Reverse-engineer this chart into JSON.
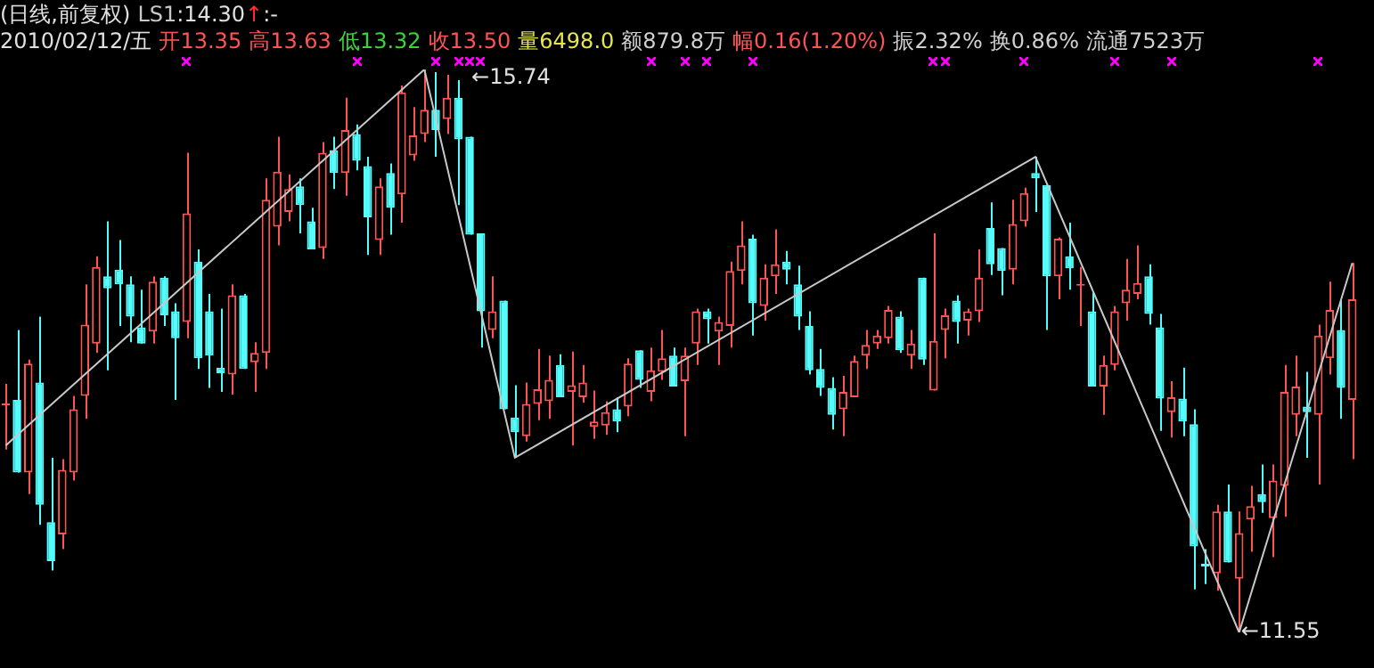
{
  "chart_data": {
    "type": "candlestick",
    "title": "(日线,前复权)",
    "categories": [
      null,
      null,
      null,
      null,
      null,
      null,
      null,
      null,
      null,
      null,
      null,
      null,
      null,
      null,
      null,
      null,
      null,
      null,
      null,
      null,
      null,
      null,
      null,
      null,
      null,
      null,
      null,
      null,
      null,
      null,
      null,
      null,
      null,
      null,
      null,
      null,
      null,
      null,
      null,
      null,
      null,
      null,
      null,
      null,
      null,
      null,
      null,
      null,
      null,
      null,
      null,
      null,
      null,
      null,
      null,
      null,
      null,
      null,
      null,
      null,
      null,
      null,
      null,
      null,
      null,
      null,
      null,
      null,
      null,
      null,
      null,
      null,
      null,
      null,
      null,
      null,
      null,
      null,
      null,
      null,
      null,
      null,
      null,
      null,
      null,
      null,
      null,
      null,
      null,
      null,
      null,
      null,
      null,
      null,
      null,
      null,
      null,
      null,
      null,
      null,
      null,
      null,
      null,
      null,
      null,
      null,
      null,
      null,
      null,
      null,
      null,
      null,
      null,
      null,
      null,
      null,
      null,
      null,
      null,
      null
    ],
    "series": [
      {
        "type": "candlestick",
        "ohlc": [
          [
            13.24,
            13.4,
            12.91,
            13.25
          ],
          [
            13.28,
            13.8,
            12.74,
            12.74
          ],
          [
            12.74,
            13.58,
            12.58,
            13.55
          ],
          [
            13.41,
            13.9,
            12.35,
            12.5
          ],
          [
            12.37,
            12.85,
            12.01,
            12.08
          ],
          [
            12.28,
            12.84,
            12.17,
            12.76
          ],
          [
            12.74,
            13.31,
            12.68,
            13.21
          ],
          [
            13.31,
            14.14,
            13.14,
            13.84
          ],
          [
            13.7,
            14.35,
            13.63,
            14.27
          ],
          [
            14.2,
            14.61,
            13.5,
            14.11
          ],
          [
            14.25,
            14.47,
            13.83,
            14.14
          ],
          [
            14.14,
            14.2,
            13.71,
            13.9
          ],
          [
            13.82,
            14.1,
            13.7,
            13.7
          ],
          [
            13.79,
            14.2,
            13.7,
            14.16
          ],
          [
            14.19,
            14.2,
            13.83,
            13.91
          ],
          [
            13.94,
            14.0,
            13.28,
            13.74
          ],
          [
            13.86,
            15.12,
            13.74,
            14.67
          ],
          [
            14.31,
            14.4,
            13.51,
            13.59
          ],
          [
            13.94,
            14.07,
            13.37,
            13.61
          ],
          [
            13.52,
            13.96,
            13.34,
            13.48
          ],
          [
            13.47,
            14.14,
            13.32,
            14.06
          ],
          [
            14.06,
            14.07,
            13.51,
            13.51
          ],
          [
            13.56,
            13.71,
            13.34,
            13.63
          ],
          [
            13.63,
            14.93,
            13.51,
            14.77
          ],
          [
            14.57,
            15.24,
            14.43,
            14.98
          ],
          [
            14.68,
            14.96,
            14.61,
            14.85
          ],
          [
            14.87,
            14.93,
            14.52,
            14.73
          ],
          [
            14.61,
            14.71,
            14.4,
            14.4
          ],
          [
            14.41,
            15.2,
            14.33,
            15.12
          ],
          [
            15.14,
            15.24,
            14.85,
            14.97
          ],
          [
            14.97,
            15.53,
            14.8,
            15.29
          ],
          [
            15.26,
            15.33,
            14.99,
            15.06
          ],
          [
            15.02,
            15.09,
            14.36,
            14.64
          ],
          [
            14.47,
            14.93,
            14.36,
            14.87
          ],
          [
            14.97,
            15.04,
            14.51,
            14.71
          ],
          [
            14.81,
            15.62,
            14.6,
            15.57
          ],
          [
            15.1,
            15.46,
            15.06,
            15.25
          ],
          [
            15.26,
            15.74,
            15.2,
            15.44
          ],
          [
            15.44,
            15.72,
            15.09,
            15.29
          ],
          [
            15.37,
            15.7,
            15.26,
            15.53
          ],
          [
            15.53,
            15.66,
            14.73,
            15.22
          ],
          [
            15.24,
            15.24,
            14.51,
            14.51
          ],
          [
            14.52,
            14.52,
            13.67,
            13.94
          ],
          [
            13.8,
            14.2,
            13.74,
            13.94
          ],
          [
            14.02,
            14.02,
            13.21,
            13.21
          ],
          [
            13.15,
            13.39,
            12.85,
            13.04
          ],
          [
            13.01,
            13.41,
            12.97,
            13.25
          ],
          [
            13.25,
            13.66,
            13.13,
            13.36
          ],
          [
            13.27,
            13.61,
            13.14,
            13.43
          ],
          [
            13.54,
            13.62,
            13.3,
            13.3
          ],
          [
            13.34,
            13.64,
            12.94,
            13.39
          ],
          [
            13.3,
            13.54,
            13.26,
            13.41
          ],
          [
            13.08,
            13.35,
            12.99,
            13.12
          ],
          [
            13.09,
            13.27,
            13.02,
            13.19
          ],
          [
            13.21,
            13.3,
            13.04,
            13.12
          ],
          [
            13.23,
            13.59,
            13.16,
            13.55
          ],
          [
            13.65,
            13.65,
            13.37,
            13.43
          ],
          [
            13.34,
            13.67,
            13.27,
            13.5
          ],
          [
            13.49,
            13.8,
            13.43,
            13.59
          ],
          [
            13.61,
            13.67,
            13.38,
            13.38
          ],
          [
            13.42,
            13.67,
            13.01,
            13.61
          ],
          [
            13.7,
            13.96,
            13.54,
            13.94
          ],
          [
            13.94,
            13.96,
            13.7,
            13.88
          ],
          [
            13.79,
            13.9,
            13.54,
            13.86
          ],
          [
            13.83,
            14.31,
            13.67,
            14.24
          ],
          [
            14.24,
            14.61,
            14.14,
            14.43
          ],
          [
            14.48,
            14.51,
            13.76,
            14.0
          ],
          [
            13.98,
            14.29,
            13.87,
            14.19
          ],
          [
            14.2,
            14.55,
            14.07,
            14.29
          ],
          [
            14.31,
            14.39,
            14.14,
            14.25
          ],
          [
            14.14,
            14.28,
            13.8,
            13.9
          ],
          [
            13.83,
            13.94,
            13.47,
            13.5
          ],
          [
            13.51,
            13.66,
            13.31,
            13.37
          ],
          [
            13.37,
            13.45,
            13.06,
            13.17
          ],
          [
            13.21,
            13.46,
            13.01,
            13.34
          ],
          [
            13.3,
            13.61,
            13.3,
            13.57
          ],
          [
            13.61,
            13.8,
            13.51,
            13.69
          ],
          [
            13.7,
            13.8,
            13.66,
            13.76
          ],
          [
            13.74,
            13.98,
            13.7,
            13.95
          ],
          [
            13.9,
            13.94,
            13.63,
            13.65
          ],
          [
            13.61,
            13.8,
            13.51,
            13.7
          ],
          [
            14.19,
            14.19,
            13.54,
            13.58
          ],
          [
            13.35,
            14.52,
            13.35,
            13.72
          ],
          [
            13.8,
            13.96,
            13.59,
            13.91
          ],
          [
            14.02,
            14.06,
            13.7,
            13.86
          ],
          [
            13.87,
            13.96,
            13.76,
            13.94
          ],
          [
            13.94,
            14.4,
            13.86,
            14.19
          ],
          [
            14.56,
            14.75,
            14.21,
            14.29
          ],
          [
            14.41,
            14.41,
            14.06,
            14.24
          ],
          [
            14.25,
            14.77,
            14.14,
            14.59
          ],
          [
            14.61,
            14.86,
            14.57,
            14.82
          ],
          [
            14.97,
            15.09,
            14.68,
            14.93
          ],
          [
            14.88,
            14.88,
            13.8,
            14.2
          ],
          [
            14.2,
            14.49,
            14.03,
            14.48
          ],
          [
            14.35,
            14.6,
            14.1,
            14.26
          ],
          [
            14.13,
            14.27,
            13.83,
            14.14
          ],
          [
            13.94,
            14.08,
            13.38,
            13.38
          ],
          [
            13.38,
            13.61,
            13.17,
            13.54
          ],
          [
            13.54,
            13.98,
            13.5,
            13.94
          ],
          [
            14.0,
            14.33,
            13.87,
            14.1
          ],
          [
            14.07,
            14.43,
            14.03,
            14.15
          ],
          [
            14.2,
            14.29,
            13.84,
            13.92
          ],
          [
            13.82,
            13.92,
            13.05,
            13.29
          ],
          [
            13.19,
            13.42,
            13.0,
            13.3
          ],
          [
            13.29,
            13.52,
            13.01,
            13.12
          ],
          [
            13.1,
            13.21,
            11.87,
            12.19
          ],
          [
            12.06,
            12.17,
            11.91,
            12.04
          ],
          [
            11.99,
            12.5,
            11.86,
            12.45
          ],
          [
            12.45,
            12.65,
            12.07,
            12.07
          ],
          [
            11.95,
            12.45,
            11.55,
            12.29
          ],
          [
            12.39,
            12.64,
            12.15,
            12.49
          ],
          [
            12.58,
            12.8,
            12.44,
            12.52
          ],
          [
            12.4,
            12.8,
            12.11,
            12.68
          ],
          [
            12.64,
            13.54,
            12.41,
            13.34
          ],
          [
            13.17,
            13.61,
            13.01,
            13.38
          ],
          [
            13.23,
            13.49,
            12.85,
            13.19
          ],
          [
            13.17,
            13.84,
            12.65,
            13.76
          ],
          [
            13.59,
            14.16,
            13.47,
            13.95
          ],
          [
            13.8,
            14.03,
            13.14,
            13.37
          ],
          [
            13.28,
            14.3,
            12.84,
            14.03
          ]
        ],
        "colors": [
          "#ff5454",
          "#54fcfc",
          "#ff5454",
          "#54fcfc",
          "#54fcfc",
          "#ff5454",
          "#ff5454",
          "#ff5454",
          "#ff5454",
          "#54fcfc",
          "#54fcfc",
          "#54fcfc",
          "#54fcfc",
          "#ff5454",
          "#54fcfc",
          "#54fcfc",
          "#ff5454",
          "#54fcfc",
          "#54fcfc",
          "#54fcfc",
          "#ff5454",
          "#54fcfc",
          "#ff5454",
          "#ff5454",
          "#ff5454",
          "#ff5454",
          "#54fcfc",
          "#54fcfc",
          "#ff5454",
          "#54fcfc",
          "#ff5454",
          "#54fcfc",
          "#54fcfc",
          "#ff5454",
          "#54fcfc",
          "#ff5454",
          "#ff5454",
          "#ff5454",
          "#54fcfc",
          "#ff5454",
          "#54fcfc",
          "#54fcfc",
          "#54fcfc",
          "#ff5454",
          "#54fcfc",
          "#54fcfc",
          "#ff5454",
          "#ff5454",
          "#ff5454",
          "#54fcfc",
          "#ff5454",
          "#ff5454",
          "#ff5454",
          "#ff5454",
          "#54fcfc",
          "#ff5454",
          "#54fcfc",
          "#ff5454",
          "#ff5454",
          "#54fcfc",
          "#ff5454",
          "#ff5454",
          "#54fcfc",
          "#ff5454",
          "#ff5454",
          "#ff5454",
          "#54fcfc",
          "#ff5454",
          "#ff5454",
          "#54fcfc",
          "#54fcfc",
          "#54fcfc",
          "#54fcfc",
          "#54fcfc",
          "#ff5454",
          "#ff5454",
          "#ff5454",
          "#ff5454",
          "#ff5454",
          "#54fcfc",
          "#ff5454",
          "#54fcfc",
          "#ff5454",
          "#ff5454",
          "#54fcfc",
          "#ff5454",
          "#ff5454",
          "#54fcfc",
          "#54fcfc",
          "#ff5454",
          "#ff5454",
          "#54fcfc",
          "#54fcfc",
          "#ff5454",
          "#54fcfc",
          "#ff5454",
          "#54fcfc",
          "#ff5454",
          "#ff5454",
          "#ff5454",
          "#ff5454",
          "#54fcfc",
          "#54fcfc",
          "#ff5454",
          "#54fcfc",
          "#54fcfc",
          "#54fcfc",
          "#ff5454",
          "#54fcfc",
          "#ff5454",
          "#ff5454",
          "#54fcfc",
          "#ff5454",
          "#ff5454",
          "#ff5454",
          "#54fcfc",
          "#ff5454",
          "#ff5454",
          "#54fcfc",
          "#ff5454"
        ]
      },
      {
        "type": "line",
        "name": "LS1",
        "color": "#c8c8c8",
        "values": [
          12.94,
          null,
          null,
          null,
          null,
          null,
          null,
          null,
          null,
          null,
          null,
          null,
          null,
          null,
          null,
          null,
          null,
          null,
          null,
          null,
          null,
          null,
          null,
          null,
          null,
          null,
          null,
          null,
          null,
          null,
          null,
          null,
          null,
          null,
          null,
          null,
          null,
          15.74,
          null,
          null,
          null,
          null,
          null,
          null,
          null,
          12.85,
          null,
          null,
          null,
          null,
          null,
          null,
          null,
          null,
          null,
          null,
          null,
          null,
          null,
          null,
          null,
          null,
          null,
          null,
          null,
          null,
          null,
          null,
          null,
          null,
          null,
          null,
          null,
          null,
          null,
          null,
          null,
          null,
          null,
          null,
          null,
          null,
          null,
          null,
          null,
          null,
          null,
          null,
          null,
          null,
          null,
          15.09,
          null,
          null,
          null,
          null,
          null,
          null,
          null,
          null,
          null,
          null,
          null,
          null,
          null,
          null,
          null,
          null,
          null,
          11.55,
          null,
          null,
          null,
          null,
          null,
          null,
          null,
          null,
          null,
          14.3
        ]
      }
    ],
    "annotations": [
      ":14.30",
      "↑",
      ":-",
      "2010/02/12/五",
      "开13.35",
      "高13.63",
      "低13.32",
      "收13.50",
      "量6498.0",
      "额879.8万",
      "幅0.16(1.20%)",
      "振2.32%",
      "换0.86%",
      "流通7523万",
      "←15.74",
      "←11.55"
    ]
  }
}
